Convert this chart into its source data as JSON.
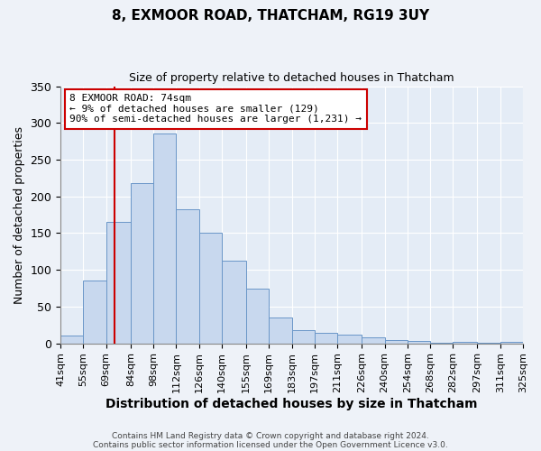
{
  "title": "8, EXMOOR ROAD, THATCHAM, RG19 3UY",
  "subtitle": "Size of property relative to detached houses in Thatcham",
  "xlabel": "Distribution of detached houses by size in Thatcham",
  "ylabel": "Number of detached properties",
  "bins": [
    "41sqm",
    "55sqm",
    "69sqm",
    "84sqm",
    "98sqm",
    "112sqm",
    "126sqm",
    "140sqm",
    "155sqm",
    "169sqm",
    "183sqm",
    "197sqm",
    "211sqm",
    "226sqm",
    "240sqm",
    "254sqm",
    "268sqm",
    "282sqm",
    "297sqm",
    "311sqm",
    "325sqm"
  ],
  "bar_values": [
    10,
    85,
    165,
    218,
    285,
    183,
    150,
    113,
    75,
    35,
    18,
    14,
    12,
    8,
    5,
    3,
    1,
    2,
    1,
    2
  ],
  "bin_edges": [
    41,
    55,
    69,
    84,
    98,
    112,
    126,
    140,
    155,
    169,
    183,
    197,
    211,
    226,
    240,
    254,
    268,
    282,
    297,
    311,
    325
  ],
  "bar_color": "#c8d8ee",
  "bar_edge_color": "#6a96c8",
  "vline_x": 74,
  "vline_color": "#cc0000",
  "annotation_title": "8 EXMOOR ROAD: 74sqm",
  "annotation_line1": "← 9% of detached houses are smaller (129)",
  "annotation_line2": "90% of semi-detached houses are larger (1,231) →",
  "annotation_box_edge": "#cc0000",
  "ylim": [
    0,
    350
  ],
  "yticks": [
    0,
    50,
    100,
    150,
    200,
    250,
    300,
    350
  ],
  "footnote1": "Contains HM Land Registry data © Crown copyright and database right 2024.",
  "footnote2": "Contains public sector information licensed under the Open Government Licence v3.0.",
  "bg_color": "#eef2f8",
  "plot_bg_color": "#e4ecf6",
  "grid_color": "#ffffff"
}
